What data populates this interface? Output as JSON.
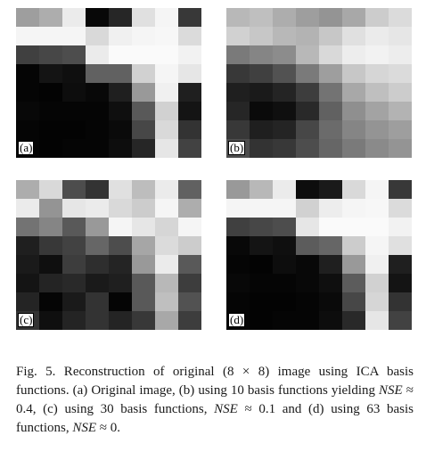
{
  "panels": [
    {
      "label": "(a)",
      "values": [
        [
          0.62,
          0.68,
          0.92,
          0.03,
          0.15,
          0.88,
          0.96,
          0.22
        ],
        [
          0.96,
          0.96,
          0.96,
          0.85,
          0.94,
          0.96,
          0.97,
          0.86
        ],
        [
          0.25,
          0.28,
          0.3,
          0.92,
          0.98,
          0.98,
          0.98,
          0.95
        ],
        [
          0.02,
          0.08,
          0.06,
          0.38,
          0.38,
          0.82,
          0.96,
          0.9
        ],
        [
          0.02,
          0.01,
          0.05,
          0.03,
          0.12,
          0.6,
          0.94,
          0.12
        ],
        [
          0.03,
          0.02,
          0.02,
          0.02,
          0.06,
          0.35,
          0.82,
          0.08
        ],
        [
          0.02,
          0.01,
          0.01,
          0.02,
          0.04,
          0.28,
          0.85,
          0.2
        ],
        [
          0.02,
          0.01,
          0.02,
          0.02,
          0.05,
          0.15,
          0.9,
          0.26
        ]
      ]
    },
    {
      "label": "(b)",
      "values": [
        [
          0.72,
          0.75,
          0.68,
          0.62,
          0.58,
          0.66,
          0.8,
          0.86
        ],
        [
          0.82,
          0.78,
          0.72,
          0.7,
          0.78,
          0.88,
          0.92,
          0.9
        ],
        [
          0.48,
          0.52,
          0.55,
          0.72,
          0.85,
          0.93,
          0.95,
          0.93
        ],
        [
          0.22,
          0.25,
          0.32,
          0.48,
          0.62,
          0.78,
          0.84,
          0.86
        ],
        [
          0.12,
          0.1,
          0.14,
          0.24,
          0.45,
          0.66,
          0.75,
          0.8
        ],
        [
          0.15,
          0.04,
          0.06,
          0.16,
          0.38,
          0.56,
          0.64,
          0.7
        ],
        [
          0.22,
          0.12,
          0.14,
          0.28,
          0.42,
          0.52,
          0.58,
          0.62
        ],
        [
          0.3,
          0.2,
          0.22,
          0.3,
          0.4,
          0.48,
          0.54,
          0.58
        ]
      ]
    },
    {
      "label": "(c)",
      "values": [
        [
          0.68,
          0.85,
          0.3,
          0.2,
          0.88,
          0.74,
          0.92,
          0.38
        ],
        [
          0.92,
          0.58,
          0.9,
          0.92,
          0.85,
          0.8,
          0.96,
          0.68
        ],
        [
          0.45,
          0.52,
          0.35,
          0.6,
          0.96,
          0.9,
          0.84,
          0.96
        ],
        [
          0.12,
          0.22,
          0.26,
          0.4,
          0.3,
          0.65,
          0.86,
          0.8
        ],
        [
          0.1,
          0.06,
          0.24,
          0.18,
          0.14,
          0.6,
          0.92,
          0.35
        ],
        [
          0.08,
          0.14,
          0.16,
          0.1,
          0.12,
          0.35,
          0.72,
          0.24
        ],
        [
          0.14,
          0.02,
          0.1,
          0.2,
          0.02,
          0.35,
          0.75,
          0.32
        ],
        [
          0.2,
          0.06,
          0.14,
          0.2,
          0.14,
          0.22,
          0.66,
          0.24
        ]
      ]
    },
    {
      "label": "(d)",
      "values": [
        [
          0.6,
          0.72,
          0.92,
          0.05,
          0.1,
          0.85,
          0.96,
          0.22
        ],
        [
          0.96,
          0.96,
          0.96,
          0.82,
          0.93,
          0.96,
          0.97,
          0.86
        ],
        [
          0.25,
          0.28,
          0.3,
          0.9,
          0.98,
          0.98,
          0.98,
          0.95
        ],
        [
          0.03,
          0.08,
          0.06,
          0.36,
          0.4,
          0.8,
          0.96,
          0.88
        ],
        [
          0.02,
          0.01,
          0.05,
          0.03,
          0.12,
          0.6,
          0.94,
          0.12
        ],
        [
          0.03,
          0.02,
          0.02,
          0.03,
          0.06,
          0.36,
          0.82,
          0.08
        ],
        [
          0.02,
          0.01,
          0.01,
          0.02,
          0.04,
          0.28,
          0.84,
          0.2
        ],
        [
          0.02,
          0.01,
          0.02,
          0.02,
          0.05,
          0.16,
          0.9,
          0.26
        ]
      ]
    }
  ],
  "caption": {
    "p1": "Fig. 5. Reconstruction of original (8 × 8) image using ICA basis functions. (a) Original image, (b) using 10 basis functions yielding ",
    "nse1": "NSE",
    "p2": " ≈ 0.4, (c) using 30 basis functions, ",
    "nse2": "NSE",
    "p3": " ≈ 0.1 and (d) using 63 basis functions, ",
    "nse3": "NSE",
    "p4": " ≈ 0."
  }
}
